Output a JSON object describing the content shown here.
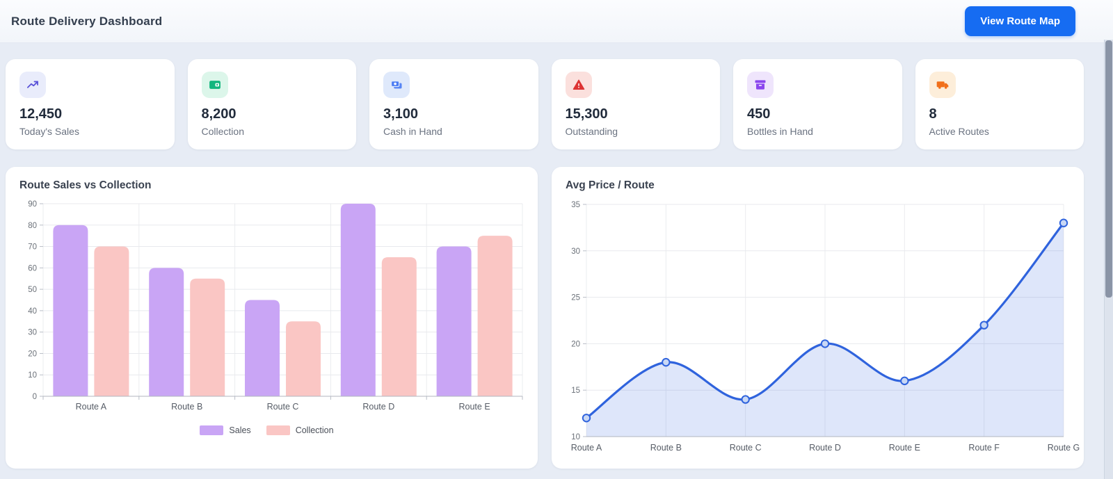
{
  "header": {
    "title": "Route Delivery Dashboard",
    "button_label": "View Route Map"
  },
  "stats": [
    {
      "value": "12,450",
      "label": "Today's Sales",
      "icon": "trending-up-icon",
      "icon_color": "#5a53d8",
      "icon_bg": "#e9ecfb"
    },
    {
      "value": "8,200",
      "label": "Collection",
      "icon": "wallet-icon",
      "icon_color": "#13b67e",
      "icon_bg": "#dcf6ea"
    },
    {
      "value": "3,100",
      "label": "Cash in Hand",
      "icon": "banknotes-icon",
      "icon_color": "#4b7cf3",
      "icon_bg": "#dfe9fb"
    },
    {
      "value": "15,300",
      "label": "Outstanding",
      "icon": "warning-triangle-icon",
      "icon_color": "#dd3333",
      "icon_bg": "#fbe0dd"
    },
    {
      "value": "450",
      "label": "Bottles in Hand",
      "icon": "archive-box-icon",
      "icon_color": "#8b46ee",
      "icon_bg": "#efe5fc"
    },
    {
      "value": "8",
      "label": "Active Routes",
      "icon": "truck-icon",
      "icon_color": "#f1701b",
      "icon_bg": "#fdeeda"
    }
  ],
  "chart_data": [
    {
      "type": "bar",
      "title": "Route Sales vs Collection",
      "categories": [
        "Route A",
        "Route B",
        "Route C",
        "Route D",
        "Route E"
      ],
      "series": [
        {
          "name": "Sales",
          "color": "#c9a5f5",
          "values": [
            80,
            60,
            45,
            90,
            70
          ]
        },
        {
          "name": "Collection",
          "color": "#fac6c4",
          "values": [
            70,
            55,
            35,
            65,
            75
          ]
        }
      ],
      "ylim": [
        0,
        90
      ],
      "ytick_step": 10,
      "grid": true,
      "legend_position": "bottom"
    },
    {
      "type": "line",
      "title": "Avg Price / Route",
      "categories": [
        "Route A",
        "Route B",
        "Route C",
        "Route D",
        "Route E",
        "Route F",
        "Route G"
      ],
      "series": [
        {
          "name": "Avg Price",
          "color": "#2f63dd",
          "marker_fill": "#c9d8f5",
          "area_opacity": 0.16,
          "values": [
            12,
            18,
            14,
            20,
            16,
            22,
            33
          ]
        }
      ],
      "ylim": [
        10,
        35
      ],
      "ytick_step": 5,
      "grid": true,
      "area": true,
      "legend_position": "none"
    }
  ]
}
